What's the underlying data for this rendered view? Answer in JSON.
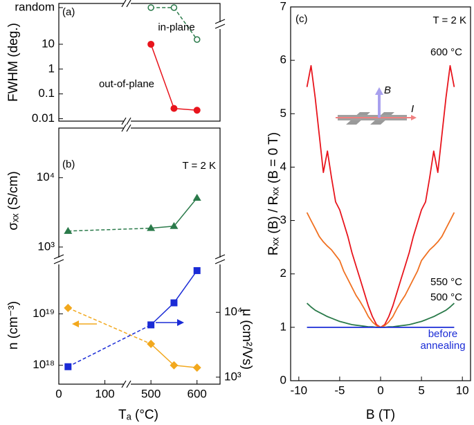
{
  "chart_data": [
    {
      "type": "line",
      "panel_label": "(a)",
      "y_label": "FWHM (deg.)",
      "log_y": true,
      "xlim": [
        0,
        650
      ],
      "xbreak": [
        150,
        450
      ],
      "ylim": [
        0.008,
        440
      ],
      "yticks": [
        0.01,
        0.1,
        1,
        10,
        {
          "value": 300,
          "label": "random"
        }
      ],
      "series": [
        {
          "name": "in-plane",
          "color": "#2a7a4a",
          "marker": "open-circle",
          "segment_styles": [
            "dashed",
            "dashed"
          ],
          "x": [
            500,
            550,
            600
          ],
          "values": [
            300,
            300,
            15.5
          ]
        },
        {
          "name": "out-of-plane",
          "color": "#e8141c",
          "marker": "circle",
          "segment_styles": [
            "solid",
            "solid"
          ],
          "x": [
            500,
            550,
            600
          ],
          "values": [
            10,
            0.026,
            0.022
          ]
        }
      ]
    },
    {
      "type": "line",
      "panel_label": "(b)",
      "annotation": "T = 2 K",
      "y_label": "σₓₓ (S/cm)",
      "log_y": true,
      "xlim": [
        0,
        650
      ],
      "xbreak": [
        150,
        450
      ],
      "ylim": [
        630,
        52000
      ],
      "yticks": [
        {
          "value": 1000,
          "label": "10³"
        },
        {
          "value": 10000,
          "label": "10⁴"
        }
      ],
      "series": [
        {
          "color": "#2a7a4a",
          "marker": "triangle",
          "segment_styles": [
            "dashed",
            "solid",
            "solid"
          ],
          "x": [
            20,
            500,
            550,
            600
          ],
          "values": [
            1700,
            1870,
            2000,
            5100
          ]
        }
      ]
    },
    {
      "type": "line",
      "log_y": true,
      "y_label": "n (cm⁻³)",
      "y2_label": "μ (cm²/Vs)",
      "x_label": "Tₐ (°C)",
      "xlim": [
        0,
        650
      ],
      "xbreak": [
        150,
        450
      ],
      "xticks": [
        0,
        100,
        500,
        600
      ],
      "ylim": [
        4.3e+17,
        1e+20
      ],
      "yticks": [
        {
          "value": 1e+18,
          "label": "10¹⁸"
        },
        {
          "value": 1e+19,
          "label": "10¹⁹"
        }
      ],
      "y2lim": [
        780,
        59000
      ],
      "y2ticks": [
        {
          "value": 1000,
          "label": "10³"
        },
        {
          "value": 10000,
          "label": "10⁴"
        }
      ],
      "series": [
        {
          "color": "#f2a81d",
          "marker": "diamond",
          "segment_styles": [
            "dashed",
            "solid",
            "solid"
          ],
          "x": [
            20,
            500,
            550,
            600
          ],
          "values": [
            1.3e+19,
            2.6e+18,
            1e+18,
            9e+17
          ]
        },
        {
          "axis": "y2",
          "color": "#1a2bd6",
          "marker": "square",
          "segment_styles": [
            "dashed",
            "solid",
            "solid"
          ],
          "x": [
            20,
            500,
            550,
            600
          ],
          "values": [
            1450,
            6400,
            14000,
            44000
          ]
        }
      ]
    },
    {
      "type": "line",
      "panel_label": "(c)",
      "annotation": "T = 2 K",
      "x_label": "B (T)",
      "y_label": "Rₓₓ (B) / Rₓₓ (B = 0 T)",
      "xlim": [
        -11,
        11
      ],
      "ylim": [
        0,
        7
      ],
      "xticks": [
        -10,
        -5,
        0,
        5,
        10
      ],
      "yticks": [
        0,
        1,
        2,
        3,
        4,
        5,
        6,
        7
      ],
      "inset_labels": [
        "B",
        "I"
      ],
      "x": [
        -9,
        -8.5,
        -8,
        -7.5,
        -7,
        -6.5,
        -6,
        -5.5,
        -5,
        -4.5,
        -4,
        -3.5,
        -3,
        -2.5,
        -2,
        -1.5,
        -1,
        -0.5,
        0,
        0.5,
        1,
        1.5,
        2,
        2.5,
        3,
        3.5,
        4,
        4.5,
        5,
        5.5,
        6,
        6.5,
        7,
        7.5,
        8,
        8.5,
        9
      ],
      "series": [
        {
          "name": "600 °C",
          "color": "#e8141c",
          "values": [
            5.5,
            5.9,
            5.3,
            4.6,
            3.9,
            4.3,
            3.8,
            3.35,
            3.2,
            2.95,
            2.7,
            2.4,
            2.15,
            1.9,
            1.65,
            1.4,
            1.2,
            1.05,
            1.0,
            1.05,
            1.2,
            1.4,
            1.65,
            1.9,
            2.15,
            2.4,
            2.7,
            2.95,
            3.2,
            3.35,
            3.8,
            4.3,
            3.9,
            4.6,
            5.3,
            5.9,
            5.5
          ]
        },
        {
          "name": "550 °C",
          "color": "#f07020",
          "values": [
            3.15,
            3.0,
            2.85,
            2.7,
            2.6,
            2.52,
            2.45,
            2.35,
            2.25,
            2.05,
            1.9,
            1.75,
            1.6,
            1.48,
            1.35,
            1.2,
            1.1,
            1.03,
            1.0,
            1.03,
            1.1,
            1.2,
            1.35,
            1.48,
            1.6,
            1.75,
            1.9,
            2.05,
            2.25,
            2.35,
            2.45,
            2.52,
            2.6,
            2.7,
            2.85,
            3.0,
            3.15
          ]
        },
        {
          "name": "500 °C",
          "color": "#2a7a4a",
          "values": [
            1.45,
            1.38,
            1.32,
            1.28,
            1.24,
            1.2,
            1.17,
            1.14,
            1.11,
            1.09,
            1.07,
            1.05,
            1.04,
            1.03,
            1.02,
            1.01,
            1.01,
            1.0,
            1.0,
            1.0,
            1.01,
            1.01,
            1.02,
            1.03,
            1.04,
            1.05,
            1.07,
            1.09,
            1.11,
            1.14,
            1.17,
            1.2,
            1.24,
            1.28,
            1.32,
            1.38,
            1.45
          ]
        },
        {
          "name": "before annealing",
          "color": "#1a2bd6",
          "values": [
            1,
            1,
            1,
            1,
            1,
            1,
            1,
            1,
            1,
            1,
            1,
            1,
            1,
            1,
            1,
            1,
            1,
            1,
            1,
            1,
            1,
            1,
            1,
            1,
            1,
            1,
            1,
            1,
            1,
            1,
            1,
            1,
            1,
            1,
            1,
            1,
            1
          ]
        }
      ]
    }
  ]
}
